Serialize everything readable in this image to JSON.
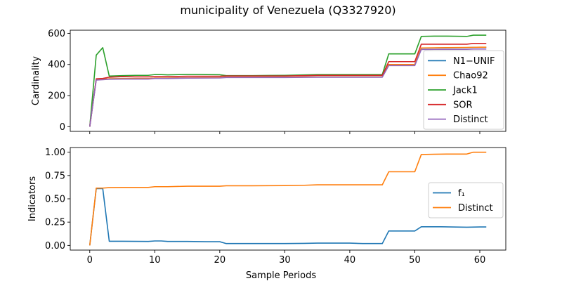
{
  "figure": {
    "title": "municipality of Venezuela (Q3327920)"
  },
  "chart_data": [
    {
      "type": "line",
      "ylabel": "Cardinality",
      "xlabel": "",
      "xlim": [
        -3,
        64
      ],
      "ylim": [
        -30,
        620
      ],
      "xticks": [
        0,
        10,
        20,
        30,
        40,
        50,
        60
      ],
      "yticks": [
        0,
        200,
        400,
        600
      ],
      "ytick_labels": [
        "0",
        "200",
        "400",
        "600"
      ],
      "show_xtick_labels": false,
      "legend_position": "lower-right",
      "series": [
        {
          "name": "N1−UNIF",
          "color": "#1f77b4",
          "x": [
            0,
            1,
            2,
            3,
            5,
            7,
            9,
            10,
            12,
            15,
            20,
            21,
            25,
            30,
            33,
            35,
            40,
            45,
            46,
            47,
            50,
            51,
            53,
            55,
            58,
            59,
            60,
            61
          ],
          "y": [
            0,
            305,
            305,
            308,
            309,
            309,
            309,
            312,
            312,
            314,
            315,
            318,
            318,
            318,
            319,
            320,
            320,
            320,
            400,
            400,
            400,
            505,
            506,
            507,
            508,
            510,
            510,
            510
          ]
        },
        {
          "name": "Chao92",
          "color": "#ff7f0e",
          "x": [
            0,
            1,
            2,
            3,
            5,
            7,
            9,
            10,
            12,
            15,
            20,
            21,
            25,
            30,
            33,
            35,
            40,
            45,
            46,
            47,
            50,
            51,
            53,
            55,
            58,
            59,
            60,
            61
          ],
          "y": [
            0,
            305,
            305,
            308,
            309,
            309,
            309,
            312,
            312,
            314,
            315,
            318,
            318,
            318,
            319,
            320,
            320,
            320,
            400,
            400,
            400,
            506,
            507,
            508,
            509,
            510,
            511,
            511
          ]
        },
        {
          "name": "Jack1",
          "color": "#2ca02c",
          "x": [
            0,
            1,
            2,
            3,
            5,
            7,
            9,
            10,
            11,
            12,
            15,
            17,
            18,
            20,
            21,
            25,
            30,
            35,
            40,
            45,
            46,
            47,
            50,
            51,
            53,
            55,
            58,
            59,
            60,
            61
          ],
          "y": [
            0,
            460,
            508,
            325,
            328,
            330,
            330,
            335,
            335,
            333,
            336,
            336,
            335,
            334,
            328,
            328,
            330,
            335,
            335,
            335,
            468,
            468,
            468,
            580,
            582,
            582,
            580,
            588,
            588,
            588
          ]
        },
        {
          "name": "SOR",
          "color": "#d62728",
          "x": [
            0,
            1,
            2,
            3,
            5,
            7,
            9,
            10,
            12,
            15,
            20,
            21,
            25,
            30,
            33,
            35,
            40,
            45,
            46,
            47,
            50,
            51,
            53,
            55,
            58,
            59,
            60,
            61
          ],
          "y": [
            0,
            308,
            310,
            318,
            322,
            320,
            320,
            322,
            322,
            324,
            324,
            326,
            326,
            326,
            328,
            330,
            330,
            330,
            418,
            418,
            418,
            530,
            530,
            530,
            530,
            535,
            535,
            535
          ]
        },
        {
          "name": "Distinct",
          "color": "#9467bd",
          "x": [
            0,
            1,
            2,
            3,
            5,
            7,
            9,
            10,
            12,
            15,
            20,
            21,
            25,
            30,
            33,
            35,
            40,
            45,
            46,
            47,
            50,
            51,
            53,
            55,
            58,
            59,
            60,
            61
          ],
          "y": [
            0,
            300,
            302,
            305,
            306,
            306,
            306,
            310,
            310,
            312,
            313,
            316,
            316,
            316,
            317,
            318,
            318,
            318,
            393,
            393,
            393,
            496,
            497,
            497,
            497,
            499,
            499,
            499
          ]
        }
      ]
    },
    {
      "type": "line",
      "ylabel": "Indicators",
      "xlabel": "Sample Periods",
      "xlim": [
        -3,
        64
      ],
      "ylim": [
        -0.05,
        1.05
      ],
      "xticks": [
        0,
        10,
        20,
        30,
        40,
        50,
        60
      ],
      "xtick_labels": [
        "0",
        "10",
        "20",
        "30",
        "40",
        "50",
        "60"
      ],
      "yticks": [
        0,
        0.25,
        0.5,
        0.75,
        1.0
      ],
      "ytick_labels": [
        "0.00",
        "0.25",
        "0.50",
        "0.75",
        "1.00"
      ],
      "legend_position": "center-right",
      "series": [
        {
          "name": "f₁",
          "color": "#1f77b4",
          "x": [
            0,
            1,
            2,
            3,
            5,
            9,
            10,
            11,
            12,
            15,
            18,
            20,
            21,
            25,
            30,
            33,
            35,
            40,
            42,
            45,
            46,
            47,
            50,
            51,
            54,
            58,
            60,
            61
          ],
          "y": [
            0,
            0.61,
            0.61,
            0.045,
            0.045,
            0.043,
            0.048,
            0.048,
            0.043,
            0.043,
            0.04,
            0.04,
            0.02,
            0.02,
            0.02,
            0.022,
            0.025,
            0.025,
            0.02,
            0.02,
            0.155,
            0.155,
            0.155,
            0.2,
            0.2,
            0.195,
            0.198,
            0.198
          ]
        },
        {
          "name": "Distinct",
          "color": "#ff7f0e",
          "x": [
            0,
            1,
            2,
            3,
            5,
            9,
            10,
            12,
            15,
            20,
            21,
            25,
            30,
            33,
            35,
            40,
            45,
            46,
            47,
            50,
            51,
            53,
            55,
            58,
            59,
            60,
            61
          ],
          "y": [
            0,
            0.615,
            0.615,
            0.62,
            0.622,
            0.622,
            0.63,
            0.63,
            0.635,
            0.635,
            0.64,
            0.64,
            0.642,
            0.645,
            0.65,
            0.65,
            0.65,
            0.79,
            0.79,
            0.79,
            0.975,
            0.978,
            0.98,
            0.98,
            1.0,
            1.0,
            1.0
          ]
        }
      ]
    }
  ]
}
